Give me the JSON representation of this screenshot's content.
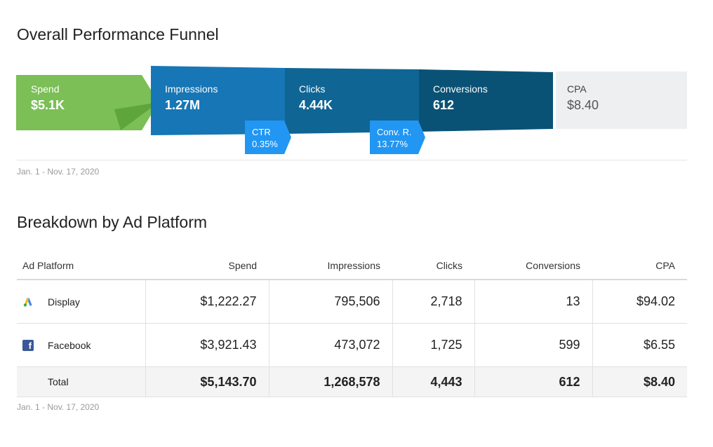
{
  "funnel": {
    "title": "Overall Performance Funnel",
    "stages": [
      {
        "label": "Spend",
        "value": "$5.1K"
      },
      {
        "label": "Impressions",
        "value": "1.27M"
      },
      {
        "label": "Clicks",
        "value": "4.44K"
      },
      {
        "label": "Conversions",
        "value": "612"
      },
      {
        "label": "CPA",
        "value": "$8.40"
      }
    ],
    "rates": [
      {
        "label": "CTR",
        "value": "0.35%"
      },
      {
        "label": "Conv. R.",
        "value": "13.77%"
      }
    ],
    "date_range": "Jan. 1 - Nov. 17, 2020",
    "colors": {
      "spend": "#7bbf56",
      "spend_fold": "#5ea53c",
      "impressions": "#1776b5",
      "clicks": "#0f6594",
      "conversions": "#0a5275",
      "cpa": "#eeeff1",
      "rate_badge": "#2196f3"
    }
  },
  "breakdown": {
    "title": "Breakdown by Ad Platform",
    "columns": [
      "Ad Platform",
      "Spend",
      "Impressions",
      "Clicks",
      "Conversions",
      "CPA"
    ],
    "rows": [
      {
        "icon": "google-ads-icon",
        "platform": "Display",
        "spend": "$1,222.27",
        "impressions": "795,506",
        "clicks": "2,718",
        "conversions": "13",
        "cpa": "$94.02"
      },
      {
        "icon": "facebook-icon",
        "platform": "Facebook",
        "spend": "$3,921.43",
        "impressions": "473,072",
        "clicks": "1,725",
        "conversions": "599",
        "cpa": "$6.55"
      }
    ],
    "total": {
      "platform": "Total",
      "spend": "$5,143.70",
      "impressions": "1,268,578",
      "clicks": "4,443",
      "conversions": "612",
      "cpa": "$8.40"
    },
    "date_range": "Jan. 1 - Nov. 17, 2020"
  }
}
